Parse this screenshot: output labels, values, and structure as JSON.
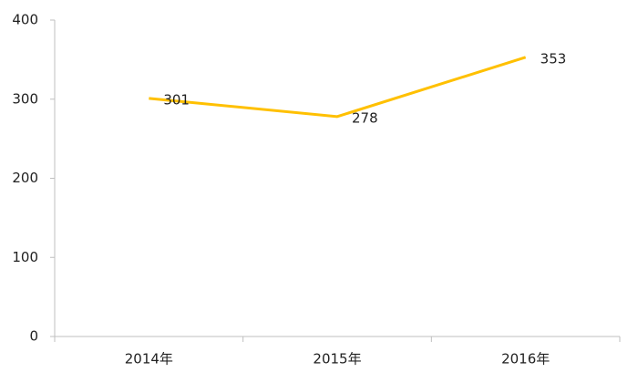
{
  "chart_data": {
    "type": "line",
    "categories": [
      "2014年",
      "2015年",
      "2016年"
    ],
    "values": [
      301,
      278,
      353
    ],
    "color": "#ffc000",
    "ylim": [
      0,
      400
    ],
    "yticks": [
      0,
      100,
      200,
      300,
      400
    ],
    "grid": false,
    "data_labels": true
  }
}
